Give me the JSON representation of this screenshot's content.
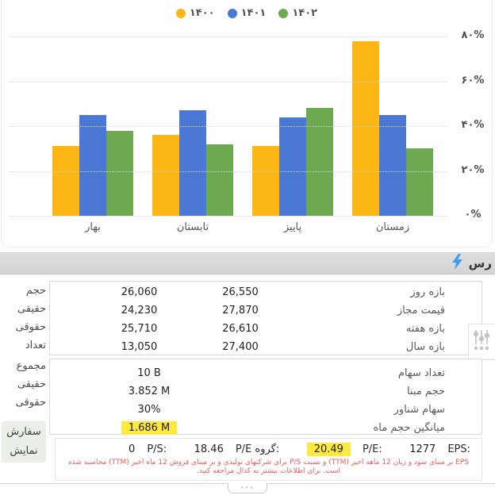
{
  "chart_data": {
    "type": "bar",
    "title": "",
    "categories": [
      "بهار",
      "تابستان",
      "پاییز",
      "زمستان"
    ],
    "series": [
      {
        "name": "۱۴۰۰",
        "color": "#FCB714",
        "values": [
          31,
          36,
          31,
          78
        ]
      },
      {
        "name": "۱۴۰۱",
        "color": "#4A78D4",
        "values": [
          45,
          47,
          44,
          45
        ]
      },
      {
        "name": "۱۴۰۲",
        "color": "#6DA951",
        "values": [
          38,
          32,
          48,
          30
        ]
      }
    ],
    "xlabel": "",
    "ylabel": "",
    "ylim": [
      0,
      80
    ],
    "yticks": [
      "۸۰%",
      "۶۰%",
      "۴۰%",
      "۲۰%",
      "۰%"
    ],
    "grid": "dotted-horizontal",
    "legend_position": "top-center",
    "unit": "percent"
  },
  "header_bar": {
    "title": "رس",
    "lightning_icon": "lightning-bolt",
    "lightning_color": "#3B9CF1"
  },
  "left_panel": {
    "section1_labels": [
      "حجم",
      "حقیقی",
      "حقوقی",
      "تعداد"
    ],
    "section2_labels": [
      "مجموع",
      "حقیقی",
      "حقوقی"
    ],
    "orders_button": {
      "line1": "سفارش",
      "line2": "نمایش"
    }
  },
  "price_table": {
    "rows": [
      {
        "value1": "26,060",
        "value2": "26,550",
        "label": "بازه روز"
      },
      {
        "value1": "24,230",
        "value2": "27,870",
        "label": "قیمت مجاز"
      },
      {
        "value1": "25,710",
        "value2": "26,610",
        "label": "بازه هفته"
      },
      {
        "value1": "13,050",
        "value2": "27,400",
        "label": "بازه سال"
      }
    ]
  },
  "share_table": {
    "rows": [
      {
        "value": "10 B",
        "label": "تعداد سهام",
        "highlight": false
      },
      {
        "value": "3.852 M",
        "label": "حجم مبنا",
        "highlight": false
      },
      {
        "value": "30%",
        "label": "سهام شناور",
        "highlight": false
      },
      {
        "value": "1.686 M",
        "label": "میانگین حجم ماه",
        "highlight": true
      }
    ],
    "highlight_color": "#FFE93F"
  },
  "stats": {
    "items": [
      {
        "label": "EPS:",
        "value": "1277",
        "highlight": false
      },
      {
        "label": "P/E:",
        "value": "20.49",
        "highlight": true
      },
      {
        "label": "P/E گروه:",
        "value": "18.46",
        "highlight": false
      },
      {
        "label": "P/S:",
        "value": "0",
        "highlight": false
      }
    ],
    "footnote": "EPS بر مبنای سود و زیان 12 ماهه اخیر (TTM) و نسبت P/S برای شرکتهای تولیدی و بر مبنای فروش 12 ماه اخیر (TTM) محاسبه شده است. برای اطلاعات بیشتر به کدال مراجعه کنید.",
    "footnote_color": "#F05A5A"
  }
}
